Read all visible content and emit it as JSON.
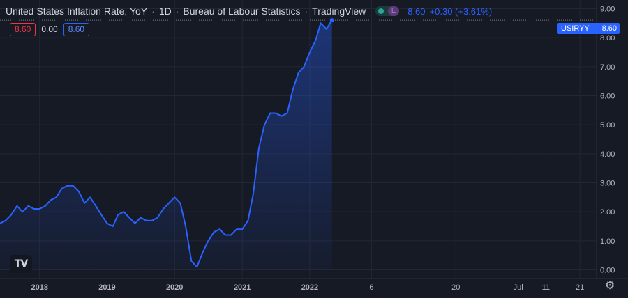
{
  "legend": {
    "title": "United States Inflation Rate, YoY",
    "interval": "1D",
    "source": "Bureau of Labour Statistics",
    "platform": "TradingView",
    "toggle_icon": "E",
    "last_value": "8.60",
    "change": "+0.30 (+3.61%)"
  },
  "values_row": {
    "red": "8.60",
    "plain": "0.00",
    "blue": "8.60"
  },
  "logo": {
    "text": "TV"
  },
  "price_tag": {
    "symbol": "USIRYY",
    "value": "8.60"
  },
  "colors": {
    "line": "#2962ff",
    "background": "#161a25",
    "grid": "#232734",
    "tag": "#2962ff"
  },
  "icons": {
    "settings": "gear-icon",
    "logo": "tradingview-logo"
  },
  "chart_data": {
    "type": "area",
    "title": "United States Inflation Rate, YoY",
    "ylim": [
      -0.3,
      9.3
    ],
    "yticks": [
      "0.00",
      "1.00",
      "2.00",
      "3.00",
      "4.00",
      "5.00",
      "6.00",
      "7.00",
      "8.00",
      "9.00"
    ],
    "xtick_labels": [
      "2018",
      "2019",
      "2020",
      "2021",
      "2022",
      "6",
      "20",
      "Jul",
      "11",
      "21"
    ],
    "xlim": [
      "2017-06-01",
      "2026-04-01"
    ],
    "xtick_dates": [
      "2018-01-01",
      "2019-01-01",
      "2020-01-01",
      "2021-01-01",
      "2022-01-01",
      "2022-12-01",
      "2024-03-01",
      "2025-02-01",
      "2025-07-01",
      "2026-01-01"
    ],
    "grid": true,
    "series": [
      {
        "name": "USIRYY",
        "x": [
          "2017-06-01",
          "2017-07-01",
          "2017-08-01",
          "2017-09-01",
          "2017-10-01",
          "2017-11-01",
          "2017-12-01",
          "2018-01-01",
          "2018-02-01",
          "2018-03-01",
          "2018-04-01",
          "2018-05-01",
          "2018-06-01",
          "2018-07-01",
          "2018-08-01",
          "2018-09-01",
          "2018-10-01",
          "2018-11-01",
          "2018-12-01",
          "2019-01-01",
          "2019-02-01",
          "2019-03-01",
          "2019-04-01",
          "2019-05-01",
          "2019-06-01",
          "2019-07-01",
          "2019-08-01",
          "2019-09-01",
          "2019-10-01",
          "2019-11-01",
          "2019-12-01",
          "2020-01-01",
          "2020-02-01",
          "2020-03-01",
          "2020-04-01",
          "2020-05-01",
          "2020-06-01",
          "2020-07-01",
          "2020-08-01",
          "2020-09-01",
          "2020-10-01",
          "2020-11-01",
          "2020-12-01",
          "2021-01-01",
          "2021-02-01",
          "2021-03-01",
          "2021-04-01",
          "2021-05-01",
          "2021-06-01",
          "2021-07-01",
          "2021-08-01",
          "2021-09-01",
          "2021-10-01",
          "2021-11-01",
          "2021-12-01",
          "2022-01-01",
          "2022-02-01",
          "2022-03-01",
          "2022-04-01",
          "2022-05-01"
        ],
        "y": [
          1.6,
          1.7,
          1.9,
          2.2,
          2.0,
          2.2,
          2.1,
          2.1,
          2.2,
          2.4,
          2.5,
          2.8,
          2.9,
          2.9,
          2.7,
          2.3,
          2.5,
          2.2,
          1.9,
          1.6,
          1.5,
          1.9,
          2.0,
          1.8,
          1.6,
          1.8,
          1.7,
          1.7,
          1.8,
          2.1,
          2.3,
          2.5,
          2.3,
          1.5,
          0.3,
          0.1,
          0.6,
          1.0,
          1.3,
          1.4,
          1.2,
          1.2,
          1.4,
          1.4,
          1.7,
          2.6,
          4.2,
          5.0,
          5.4,
          5.4,
          5.3,
          5.4,
          6.2,
          6.8,
          7.0,
          7.5,
          7.9,
          8.5,
          8.3,
          8.6
        ]
      }
    ]
  }
}
